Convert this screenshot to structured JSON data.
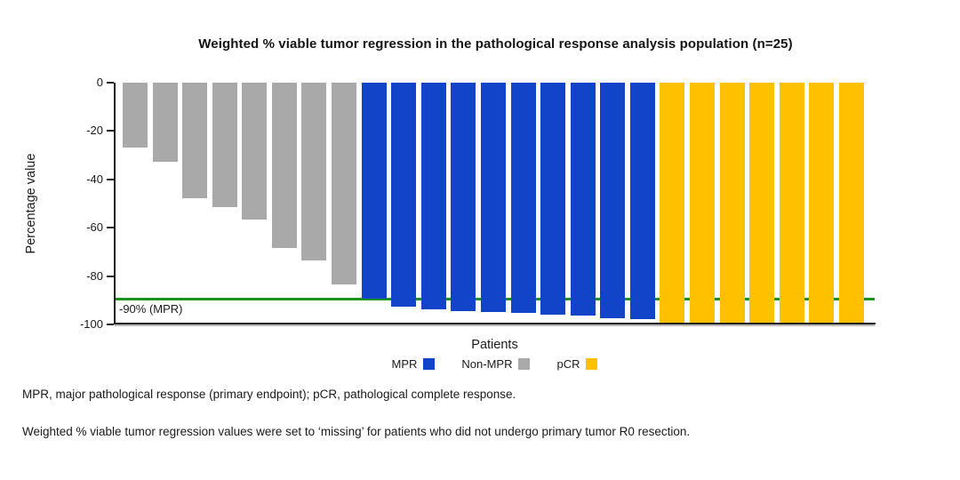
{
  "chart_data": {
    "type": "bar",
    "title": "Weighted % viable tumor regression in the pathological response analysis population (n=25)",
    "xlabel": "Patients",
    "ylabel": "Percentage value",
    "ylim": [
      -100,
      0
    ],
    "yticks": [
      0,
      -20,
      -40,
      -60,
      -80,
      -100
    ],
    "grid": false,
    "legend_position": "bottom-center",
    "reference_line": {
      "y": -90,
      "label": "-90% (MPR)",
      "color": "#1E9121"
    },
    "groups": [
      {
        "name": "MPR",
        "color": "#1144C8"
      },
      {
        "name": "Non-MPR",
        "color": "#A9A9A9"
      },
      {
        "name": "pCR",
        "color": "#FFC000"
      }
    ],
    "patients": [
      {
        "group": "Non-MPR",
        "value": -27
      },
      {
        "group": "Non-MPR",
        "value": -33
      },
      {
        "group": "Non-MPR",
        "value": -48
      },
      {
        "group": "Non-MPR",
        "value": -52
      },
      {
        "group": "Non-MPR",
        "value": -57
      },
      {
        "group": "Non-MPR",
        "value": -69
      },
      {
        "group": "Non-MPR",
        "value": -74
      },
      {
        "group": "Non-MPR",
        "value": -84
      },
      {
        "group": "MPR",
        "value": -90
      },
      {
        "group": "MPR",
        "value": -93.5
      },
      {
        "group": "MPR",
        "value": -94.5
      },
      {
        "group": "MPR",
        "value": -95
      },
      {
        "group": "MPR",
        "value": -95.5
      },
      {
        "group": "MPR",
        "value": -96
      },
      {
        "group": "MPR",
        "value": -96.5
      },
      {
        "group": "MPR",
        "value": -97
      },
      {
        "group": "MPR",
        "value": -98
      },
      {
        "group": "MPR",
        "value": -98.5
      },
      {
        "group": "pCR",
        "value": -100
      },
      {
        "group": "pCR",
        "value": -100
      },
      {
        "group": "pCR",
        "value": -100
      },
      {
        "group": "pCR",
        "value": -100
      },
      {
        "group": "pCR",
        "value": -100
      },
      {
        "group": "pCR",
        "value": -100
      },
      {
        "group": "pCR",
        "value": -100
      }
    ]
  },
  "legend": {
    "items": [
      {
        "label": "MPR",
        "color": "#1144C8"
      },
      {
        "label": "Non-MPR",
        "color": "#A9A9A9"
      },
      {
        "label": "pCR",
        "color": "#FFC000"
      }
    ]
  },
  "footnotes": [
    "MPR, major pathological response (primary endpoint); pCR, pathological complete response.",
    "Weighted % viable tumor regression values were set to ‘missing’ for patients who did not undergo primary tumor R0 resection."
  ]
}
